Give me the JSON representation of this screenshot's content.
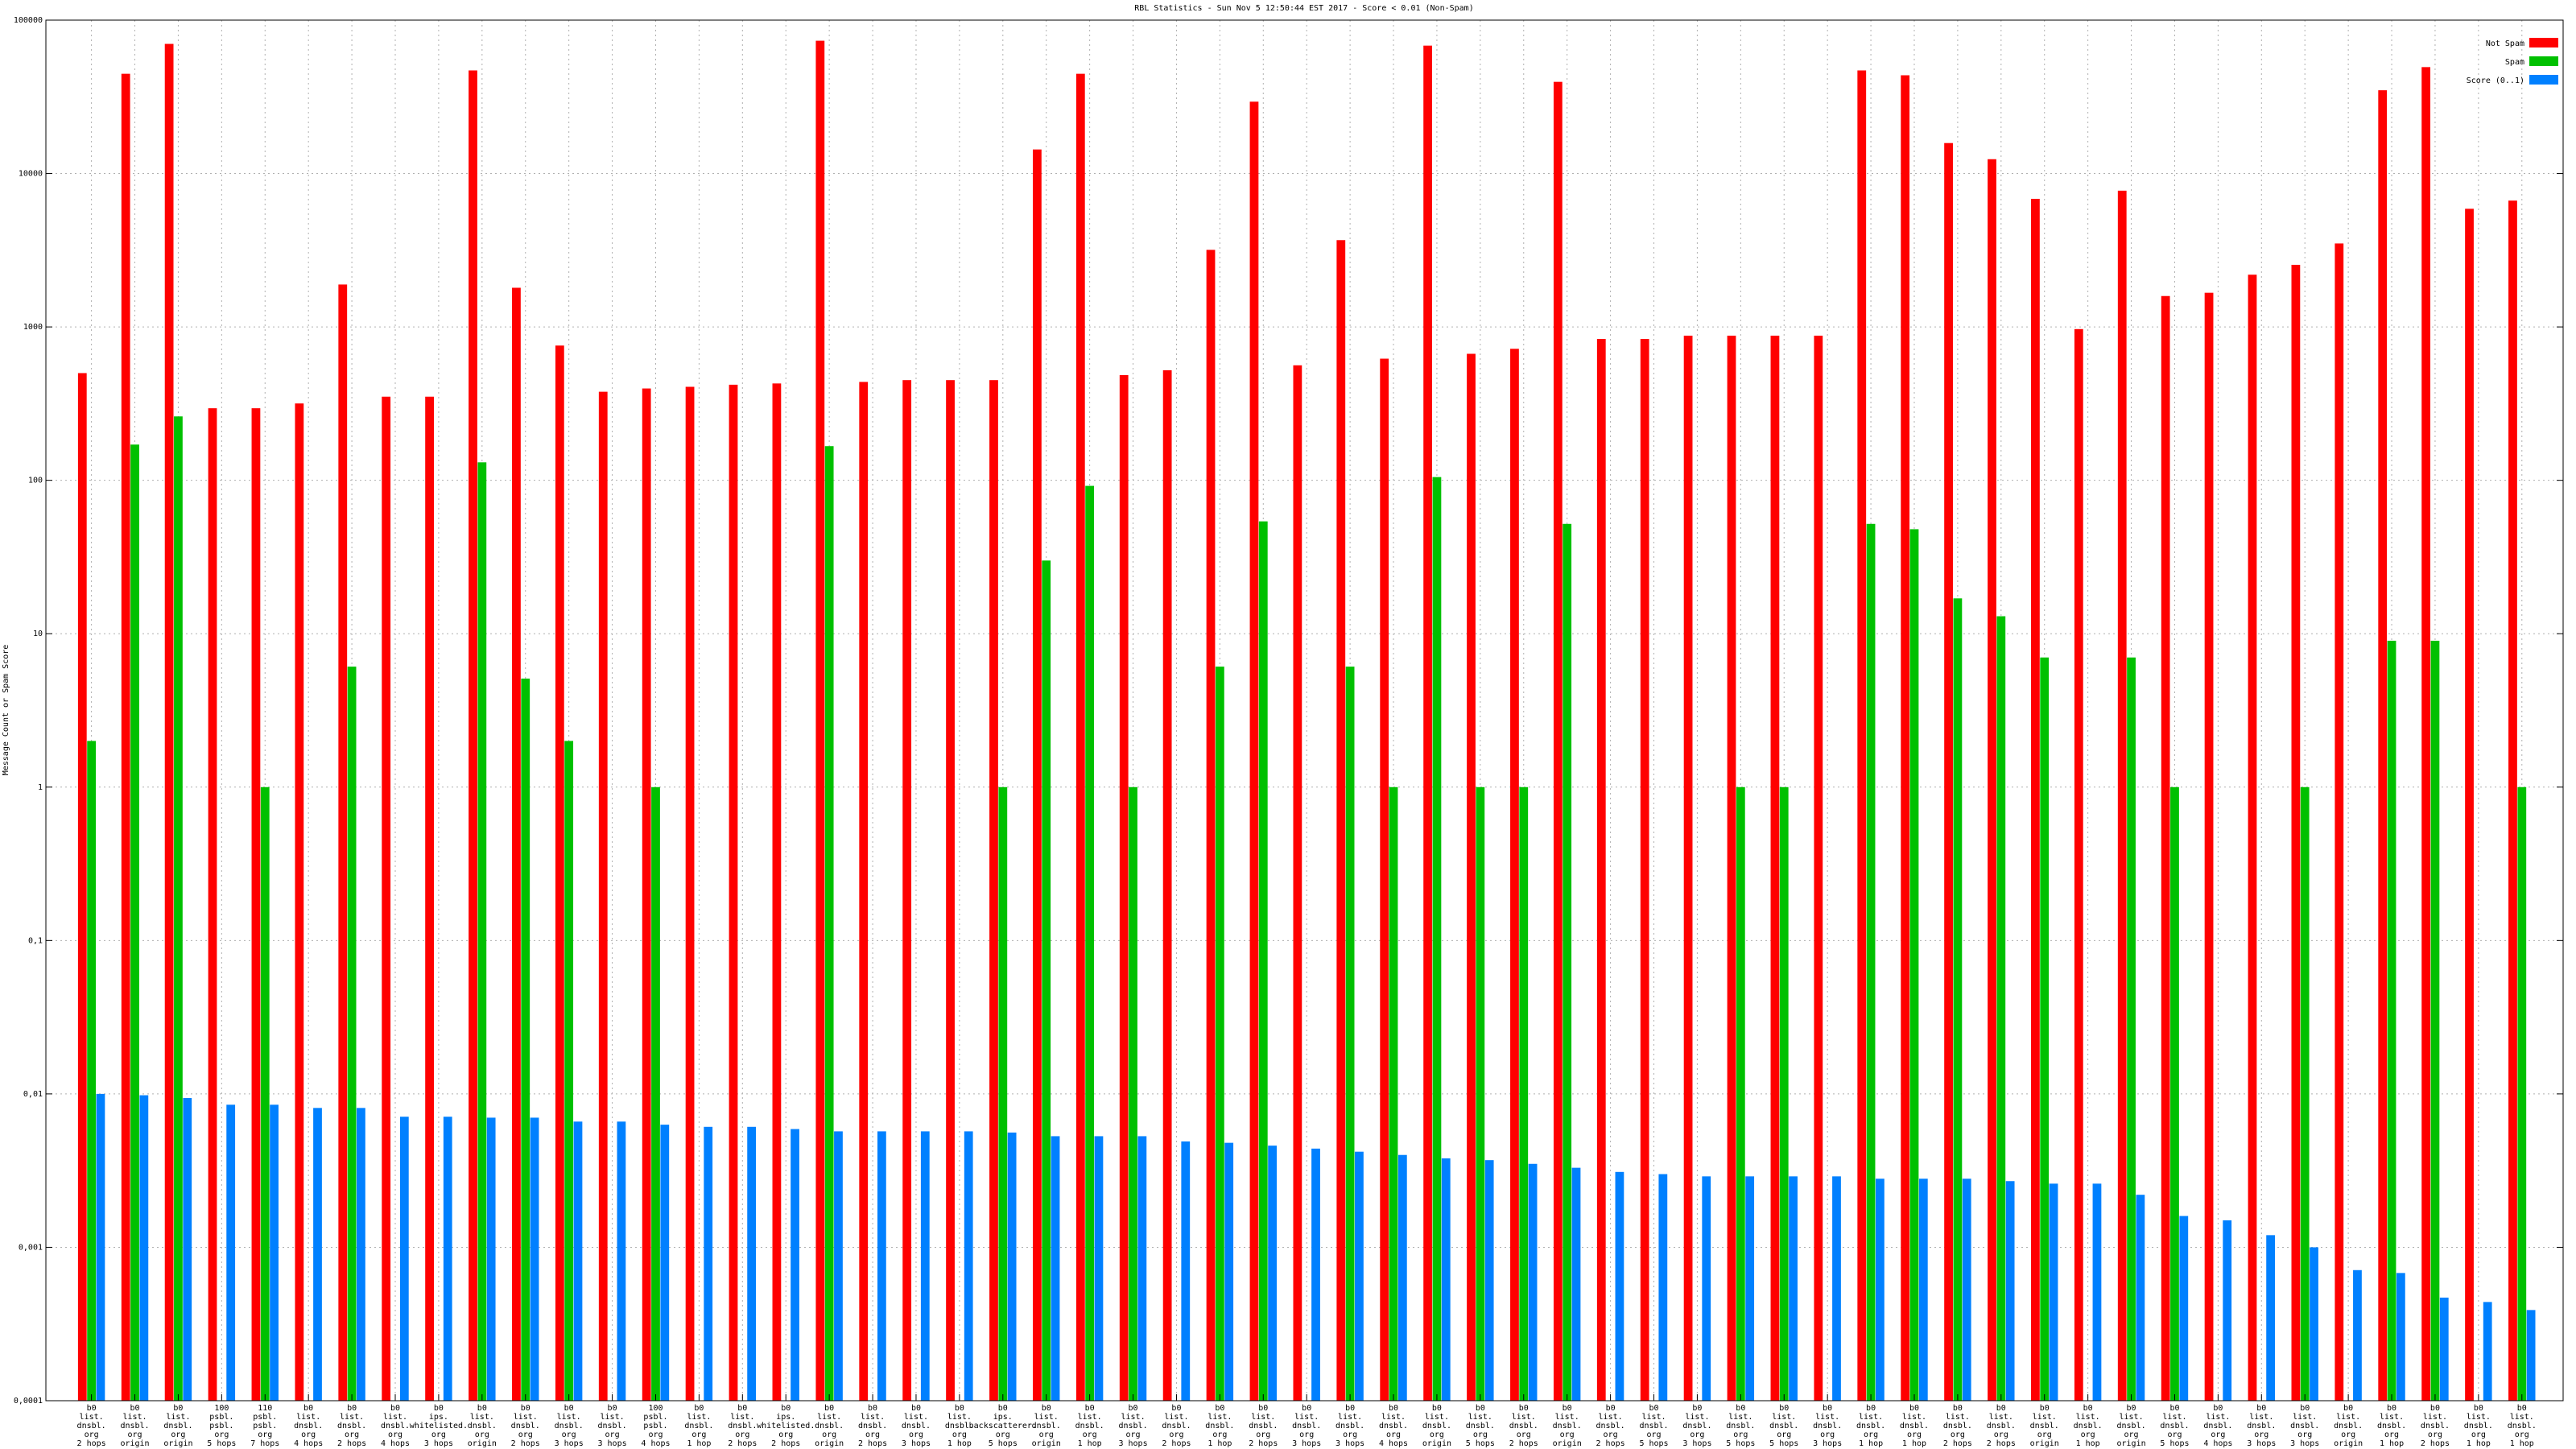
{
  "chart_data": {
    "type": "bar",
    "title": "RBL Statistics - Sun Nov  5 12:50:44 EST 2017 - Score < 0.01 (Non-Spam)",
    "y_label": "Message Count or Spam Score",
    "log_scale": true,
    "grid": true,
    "legend": "upper right",
    "ylim": [
      0.0001,
      100000
    ],
    "yticks": [
      {
        "value": 0.0001,
        "label": "0,0001"
      },
      {
        "value": 0.001,
        "label": "0,001"
      },
      {
        "value": 0.01,
        "label": "0,01"
      },
      {
        "value": 0.1,
        "label": "0,1"
      },
      1,
      10,
      100,
      1000,
      10000,
      100000
    ],
    "categories": [
      [
        "b0",
        "list.",
        "dnsbl.",
        "org",
        "2 hops"
      ],
      [
        "b0",
        "list.",
        "dnsbl.",
        "org",
        "origin"
      ],
      [
        "b0",
        "list.",
        "dnsbl.",
        "org",
        "origin"
      ],
      [
        "100",
        "psbl.",
        "psbl.",
        "org",
        "5 hops"
      ],
      [
        "110",
        "psbl.",
        "psbl.",
        "org",
        "7 hops"
      ],
      [
        "b0",
        "list.",
        "dnsbl.",
        "org",
        "4 hops"
      ],
      [
        "b0",
        "list.",
        "dnsbl.",
        "org",
        "2 hops"
      ],
      [
        "b0",
        "list.",
        "dnsbl.",
        "org",
        "4 hops"
      ],
      [
        "b0",
        "ips.",
        "whitelisted.",
        "org",
        "3 hops"
      ],
      [
        "b0",
        "list.",
        "dnsbl.",
        "org",
        "origin"
      ],
      [
        "b0",
        "list.",
        "dnsbl.",
        "org",
        "2 hops"
      ],
      [
        "b0",
        "list.",
        "dnsbl.",
        "org",
        "3 hops"
      ],
      [
        "b0",
        "list.",
        "dnsbl.",
        "org",
        "3 hops"
      ],
      [
        "100",
        "psbl.",
        "psbl.",
        "org",
        "4 hops"
      ],
      [
        "b0",
        "list.",
        "dnsbl.",
        "org",
        "1 hop"
      ],
      [
        "b0",
        "list.",
        "dnsbl.",
        "org",
        "2 hops"
      ],
      [
        "b0",
        "ips.",
        "whitelisted.",
        "org",
        "2 hops"
      ],
      [
        "b0",
        "list.",
        "dnsbl.",
        "org",
        "origin"
      ],
      [
        "b0",
        "list.",
        "dnsbl.",
        "org",
        "2 hops"
      ],
      [
        "b0",
        "list.",
        "dnsbl.",
        "org",
        "3 hops"
      ],
      [
        "b0",
        "list.",
        "dnsbl.",
        "org",
        "1 hop"
      ],
      [
        "b0",
        "ips.",
        "backscatterer.",
        "org",
        "5 hops"
      ],
      [
        "b0",
        "list.",
        "dnsbl.",
        "org",
        "origin"
      ],
      [
        "b0",
        "list.",
        "dnsbl.",
        "org",
        "1 hop"
      ],
      [
        "b0",
        "list.",
        "dnsbl.",
        "org",
        "3 hops"
      ],
      [
        "b0",
        "list.",
        "dnsbl.",
        "org",
        "2 hops"
      ],
      [
        "b0",
        "list.",
        "dnsbl.",
        "org",
        "1 hop"
      ],
      [
        "b0",
        "list.",
        "dnsbl.",
        "org",
        "2 hops"
      ],
      [
        "b0",
        "list.",
        "dnsbl.",
        "org",
        "3 hops"
      ],
      [
        "b0",
        "list.",
        "dnsbl.",
        "org",
        "3 hops"
      ],
      [
        "b0",
        "list.",
        "dnsbl.",
        "org",
        "4 hops"
      ],
      [
        "b0",
        "list.",
        "dnsbl.",
        "org",
        "origin"
      ],
      [
        "b0",
        "list.",
        "dnsbl.",
        "org",
        "5 hops"
      ],
      [
        "b0",
        "list.",
        "dnsbl.",
        "org",
        "2 hops"
      ],
      [
        "b0",
        "list.",
        "dnsbl.",
        "org",
        "origin"
      ],
      [
        "b0",
        "list.",
        "dnsbl.",
        "org",
        "2 hops"
      ],
      [
        "b0",
        "list.",
        "dnsbl.",
        "org",
        "5 hops"
      ],
      [
        "b0",
        "list.",
        "dnsbl.",
        "org",
        "3 hops"
      ],
      [
        "b0",
        "list.",
        "dnsbl.",
        "org",
        "5 hops"
      ],
      [
        "b0",
        "list.",
        "dnsbl.",
        "org",
        "5 hops"
      ],
      [
        "b0",
        "list.",
        "dnsbl.",
        "org",
        "3 hops"
      ],
      [
        "b0",
        "list.",
        "dnsbl.",
        "org",
        "1 hop"
      ],
      [
        "b0",
        "list.",
        "dnsbl.",
        "org",
        "1 hop"
      ],
      [
        "b0",
        "list.",
        "dnsbl.",
        "org",
        "2 hops"
      ],
      [
        "b0",
        "list.",
        "dnsbl.",
        "org",
        "2 hops"
      ],
      [
        "b0",
        "list.",
        "dnsbl.",
        "org",
        "origin"
      ],
      [
        "b0",
        "list.",
        "dnsbl.",
        "org",
        "1 hop"
      ],
      [
        "b0",
        "list.",
        "dnsbl.",
        "org",
        "origin"
      ],
      [
        "b0",
        "list.",
        "dnsbl.",
        "org",
        "5 hops"
      ],
      [
        "b0",
        "list.",
        "dnsbl.",
        "org",
        "4 hops"
      ],
      [
        "b0",
        "list.",
        "dnsbl.",
        "org",
        "3 hops"
      ],
      [
        "b0",
        "list.",
        "dnsbl.",
        "org",
        "3 hops"
      ],
      [
        "b0",
        "list.",
        "dnsbl.",
        "org",
        "origin"
      ],
      [
        "b0",
        "list.",
        "dnsbl.",
        "org",
        "1 hop"
      ],
      [
        "b0",
        "list.",
        "dnsbl.",
        "org",
        "2 hops"
      ],
      [
        "b0",
        "list.",
        "dnsbl.",
        "org",
        "1 hop"
      ],
      [
        "b0",
        "list.",
        "dnsbl.",
        "org",
        "1 hop"
      ]
    ],
    "series": [
      {
        "name": "Not Spam",
        "color": "#ff0000",
        "values": [
          500,
          44700,
          70000,
          295,
          295,
          317,
          1890,
          351,
          351,
          47000,
          1800,
          756,
          378,
          397,
          407,
          420,
          428,
          73400,
          438,
          450,
          450,
          450,
          14350,
          44700,
          485,
          522,
          3180,
          29400,
          562,
          3680,
          621,
          68200,
          668,
          720,
          39600,
          835,
          835,
          877,
          877,
          877,
          877,
          47000,
          43700,
          15800,
          12400,
          6840,
          968,
          7730,
          1590,
          1670,
          2190,
          2540,
          3500,
          34900,
          49400,
          5890,
          6660
        ]
      },
      {
        "name": "Spam",
        "color": "#00c000",
        "values": [
          2,
          171,
          261,
          null,
          1,
          null,
          6.1,
          null,
          null,
          131,
          5.1,
          2,
          null,
          1,
          null,
          null,
          null,
          167,
          null,
          null,
          null,
          1,
          30,
          92,
          1,
          null,
          6.1,
          54,
          null,
          6.1,
          1,
          105,
          1,
          1,
          52,
          null,
          null,
          null,
          1,
          1,
          null,
          52,
          48,
          17,
          13,
          7,
          null,
          7,
          1,
          null,
          null,
          1,
          null,
          9,
          9,
          null,
          1
        ]
      },
      {
        "name": "Score (0..1)",
        "color": "#0080ff",
        "values": [
          0.01,
          0.0098,
          0.0094,
          0.0085,
          0.0085,
          0.0081,
          0.0081,
          0.0071,
          0.0071,
          0.007,
          0.007,
          0.0066,
          0.0066,
          0.0063,
          0.0061,
          0.0061,
          0.0059,
          0.0057,
          0.0057,
          0.0057,
          0.0057,
          0.0056,
          0.0053,
          0.0053,
          0.0053,
          0.0049,
          0.0048,
          0.0046,
          0.0044,
          0.0042,
          0.004,
          0.0038,
          0.0037,
          0.0035,
          0.0033,
          0.0031,
          0.003,
          0.0029,
          0.0029,
          0.0029,
          0.0029,
          0.0028,
          0.0028,
          0.0028,
          0.0027,
          0.0026,
          0.0026,
          0.0022,
          0.0016,
          0.0015,
          0.0012,
          0.001,
          0.00071,
          0.00068,
          0.00047,
          0.00044,
          0.00039
        ]
      }
    ]
  }
}
